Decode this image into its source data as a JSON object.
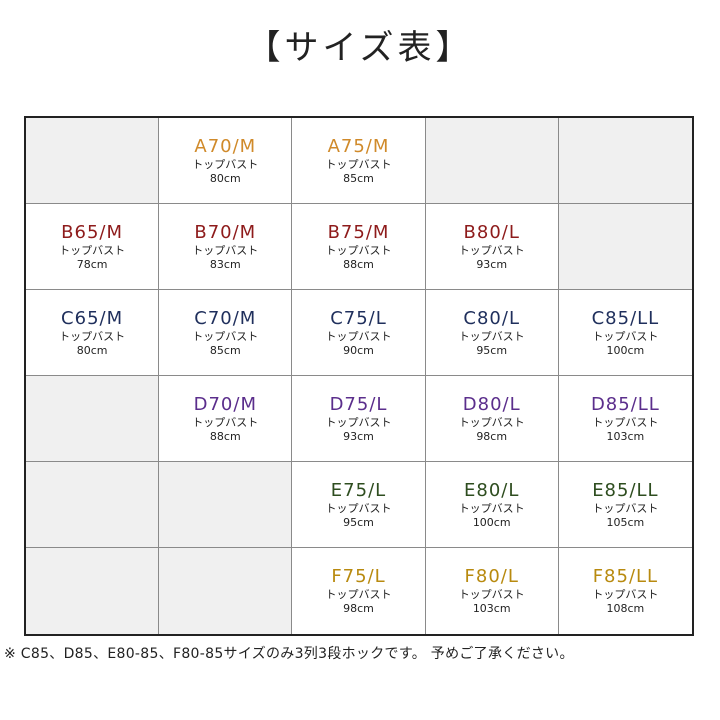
{
  "title": "【サイズ表】",
  "label": "トップバスト",
  "colors": {
    "A": "#d08a2a",
    "B": "#8e1b1b",
    "C": "#1f2f5c",
    "D": "#5b2e8c",
    "E": "#2e4d1f",
    "F": "#b88a0f",
    "empty": "#f0f0f0"
  },
  "rows": [
    [
      null,
      {
        "size": "A70/M",
        "bust": "80cm",
        "group": "A"
      },
      {
        "size": "A75/M",
        "bust": "85cm",
        "group": "A"
      },
      null,
      null
    ],
    [
      {
        "size": "B65/M",
        "bust": "78cm",
        "group": "B"
      },
      {
        "size": "B70/M",
        "bust": "83cm",
        "group": "B"
      },
      {
        "size": "B75/M",
        "bust": "88cm",
        "group": "B"
      },
      {
        "size": "B80/L",
        "bust": "93cm",
        "group": "B"
      },
      null
    ],
    [
      {
        "size": "C65/M",
        "bust": "80cm",
        "group": "C"
      },
      {
        "size": "C70/M",
        "bust": "85cm",
        "group": "C"
      },
      {
        "size": "C75/L",
        "bust": "90cm",
        "group": "C"
      },
      {
        "size": "C80/L",
        "bust": "95cm",
        "group": "C"
      },
      {
        "size": "C85/LL",
        "bust": "100cm",
        "group": "C"
      }
    ],
    [
      null,
      {
        "size": "D70/M",
        "bust": "88cm",
        "group": "D"
      },
      {
        "size": "D75/L",
        "bust": "93cm",
        "group": "D"
      },
      {
        "size": "D80/L",
        "bust": "98cm",
        "group": "D"
      },
      {
        "size": "D85/LL",
        "bust": "103cm",
        "group": "D"
      }
    ],
    [
      null,
      null,
      {
        "size": "E75/L",
        "bust": "95cm",
        "group": "E"
      },
      {
        "size": "E80/L",
        "bust": "100cm",
        "group": "E"
      },
      {
        "size": "E85/LL",
        "bust": "105cm",
        "group": "E"
      }
    ],
    [
      null,
      null,
      {
        "size": "F75/L",
        "bust": "98cm",
        "group": "F"
      },
      {
        "size": "F80/L",
        "bust": "103cm",
        "group": "F"
      },
      {
        "size": "F85/LL",
        "bust": "108cm",
        "group": "F"
      }
    ]
  ],
  "footnote": "※ C85、D85、E80-85、F80-85サイズのみ3列3段ホックです。 予めご了承ください。"
}
